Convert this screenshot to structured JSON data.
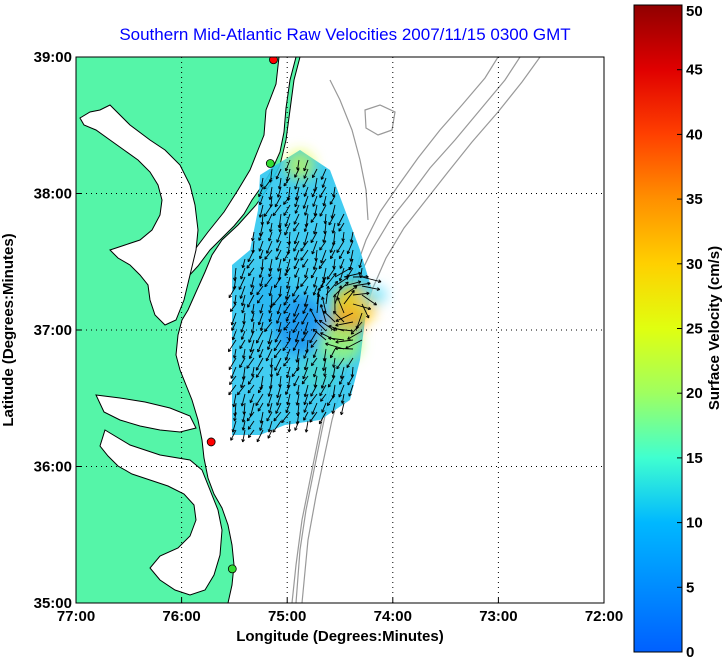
{
  "chart_data": {
    "type": "map-vector-field",
    "title": "Southern Mid-Atlantic Raw Velocities 2007/11/15 0300 GMT",
    "xlabel": "Longitude (Degrees:Minutes)",
    "ylabel": "Latitude (Degrees:Minutes)",
    "xlim": [
      -77.0,
      -72.0
    ],
    "ylim": [
      35.0,
      39.0
    ],
    "x_ticks": [
      {
        "value": -77,
        "label": "77:00"
      },
      {
        "value": -76,
        "label": "76:00"
      },
      {
        "value": -75,
        "label": "75:00"
      },
      {
        "value": -74,
        "label": "74:00"
      },
      {
        "value": -73,
        "label": "73:00"
      },
      {
        "value": -72,
        "label": "72:00"
      }
    ],
    "y_ticks": [
      {
        "value": 35,
        "label": "35:00"
      },
      {
        "value": 36,
        "label": "36:00"
      },
      {
        "value": 37,
        "label": "37:00"
      },
      {
        "value": 38,
        "label": "38:00"
      },
      {
        "value": 39,
        "label": "39:00"
      }
    ],
    "grid": true,
    "colorbar": {
      "label": "Surface Velocity (cm/s)",
      "range": [
        0,
        50
      ],
      "ticks": [
        "0",
        "5",
        "10",
        "15",
        "20",
        "25",
        "30",
        "35",
        "40",
        "45",
        "50"
      ]
    },
    "stations": [
      {
        "lon": -75.13,
        "lat": 38.98,
        "color": "#ff0000"
      },
      {
        "lon": -75.16,
        "lat": 38.22,
        "color": "#33dd33"
      },
      {
        "lon": -75.72,
        "lat": 36.18,
        "color": "#ff0000"
      },
      {
        "lon": -75.52,
        "lat": 35.25,
        "color": "#33dd33"
      }
    ],
    "colors": {
      "land": "#55f5a8",
      "coastline": "#000000",
      "bathymetry": "#999999",
      "grid": "#000000"
    },
    "velocity_field_summary": {
      "dominant_speed_cm_s": [
        8,
        14
      ],
      "max_speed_cm_s": 33,
      "max_speed_location": {
        "lon": -74.4,
        "lat": 37.1
      }
    }
  }
}
